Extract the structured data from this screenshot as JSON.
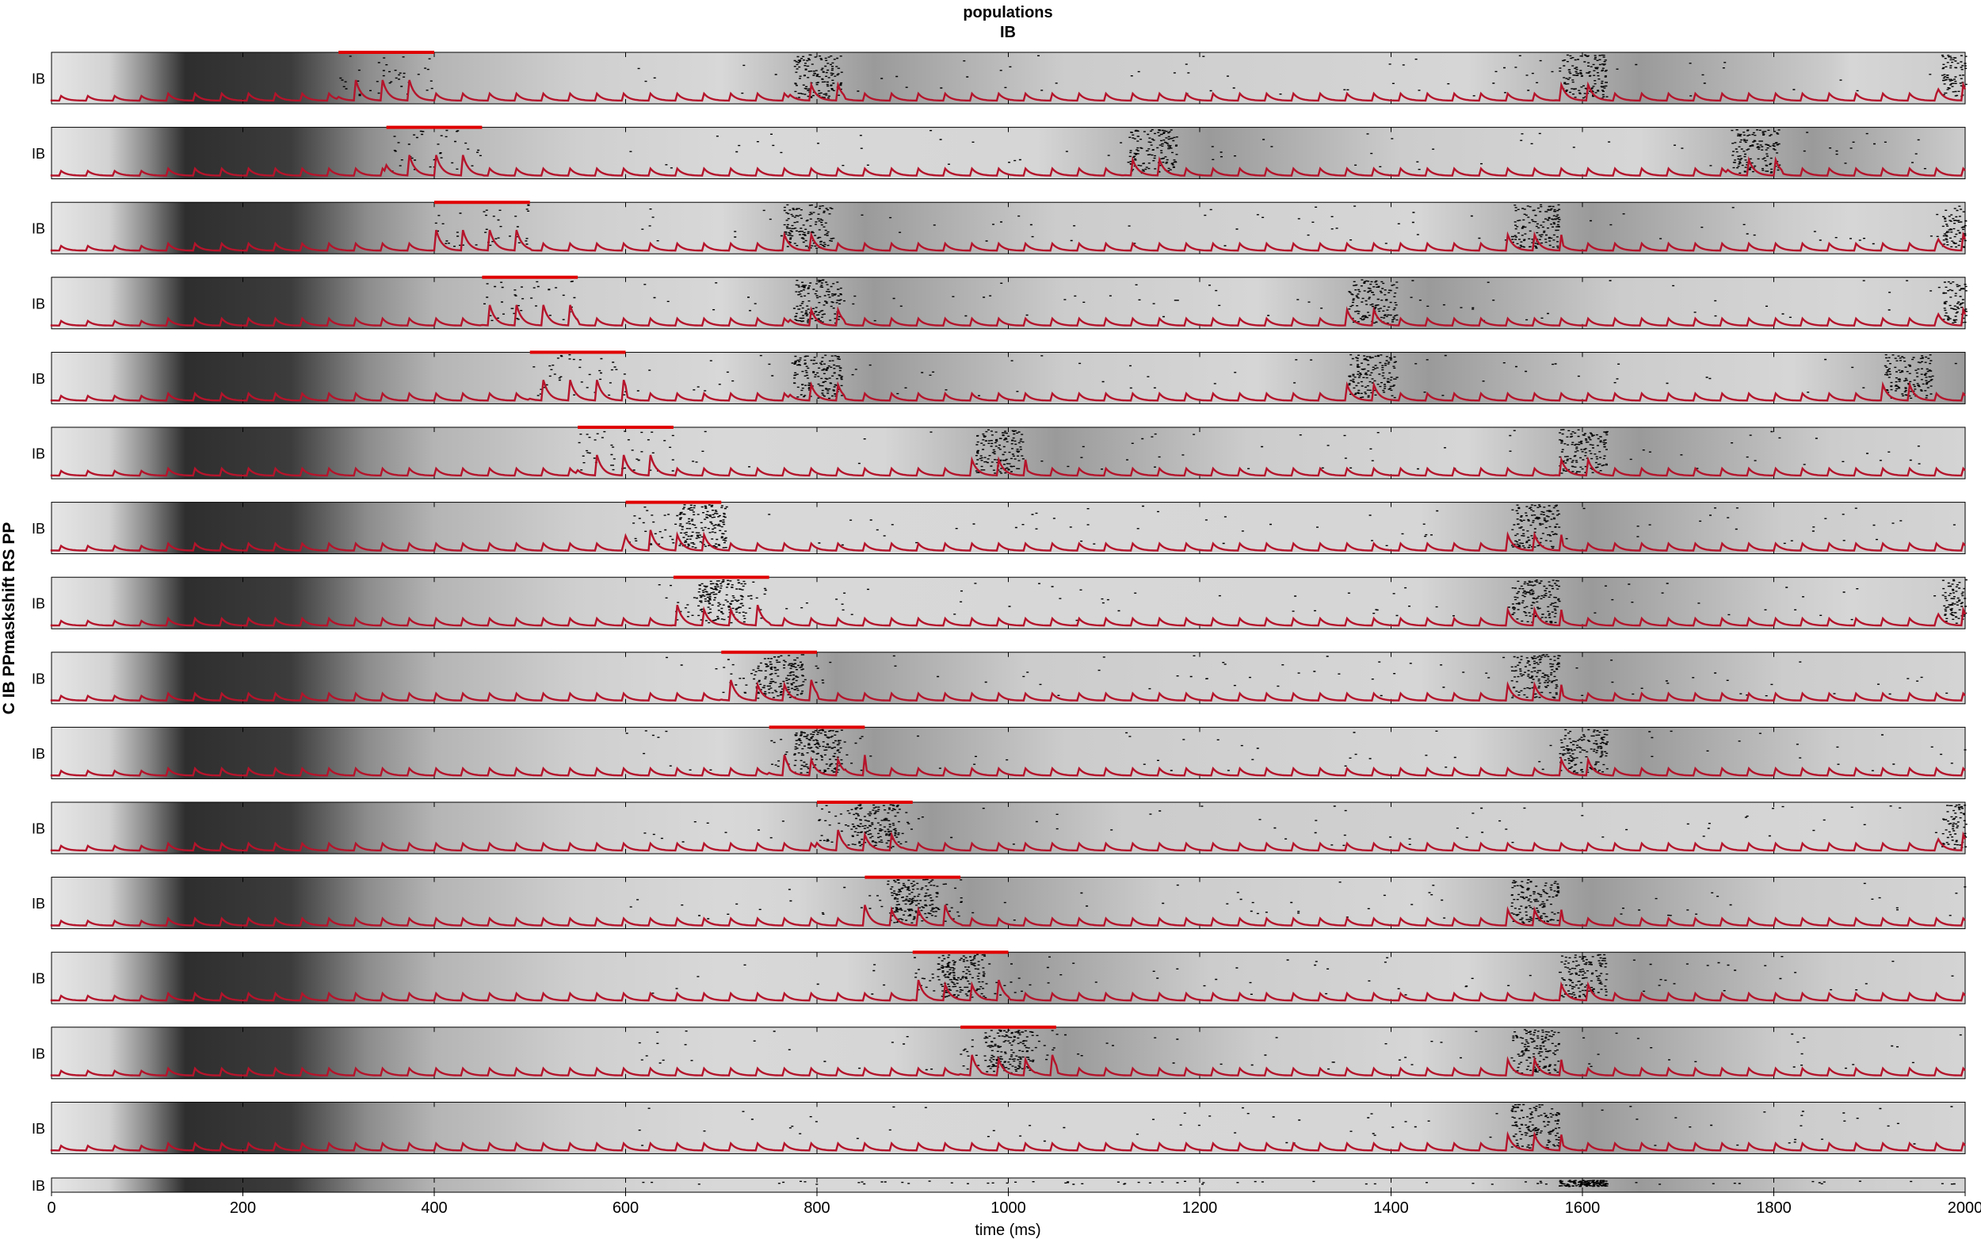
{
  "figure": {
    "title_line1": "populations",
    "title_line2": "IB",
    "side_label": "C IB PPmaskshift RS PP"
  },
  "chart_data": {
    "type": "raster",
    "title": "populations IB",
    "xlabel": "time (ms)",
    "ylabel": "",
    "xlim": [
      0,
      2000
    ],
    "xticks": [
      0,
      200,
      400,
      600,
      800,
      1000,
      1200,
      1400,
      1600,
      1800,
      2000
    ],
    "xtick_labels": [
      "0",
      "200",
      "400",
      "600",
      "800",
      "1000",
      "1200",
      "1400",
      "1600",
      "1800",
      "2000"
    ],
    "grid": false,
    "colors": {
      "trace": "#b5142b",
      "mask_bar": "#e00000",
      "spikes": "#000000",
      "background_light": "#dcdcdc",
      "background_dark": "#282828"
    },
    "rows": [
      {
        "axis_label": "IB",
        "mask_start": 300,
        "mask_end": 400,
        "bursts": [
          800,
          1600,
          2000
        ]
      },
      {
        "axis_label": "IB",
        "mask_start": 350,
        "mask_end": 450,
        "bursts": [
          1150,
          1780
        ]
      },
      {
        "axis_label": "IB",
        "mask_start": 400,
        "mask_end": 500,
        "bursts": [
          790,
          1550,
          2000
        ]
      },
      {
        "axis_label": "IB",
        "mask_start": 450,
        "mask_end": 550,
        "bursts": [
          800,
          1380,
          2000
        ]
      },
      {
        "axis_label": "IB",
        "mask_start": 500,
        "mask_end": 600,
        "bursts": [
          800,
          1380,
          1940
        ]
      },
      {
        "axis_label": "IB",
        "mask_start": 550,
        "mask_end": 650,
        "bursts": [
          990,
          1600
        ]
      },
      {
        "axis_label": "IB",
        "mask_start": 600,
        "mask_end": 700,
        "bursts": [
          680,
          1550
        ]
      },
      {
        "axis_label": "IB",
        "mask_start": 650,
        "mask_end": 750,
        "bursts": [
          700,
          1550,
          2000
        ]
      },
      {
        "axis_label": "IB",
        "mask_start": 700,
        "mask_end": 800,
        "bursts": [
          760,
          1550
        ]
      },
      {
        "axis_label": "IB",
        "mask_start": 750,
        "mask_end": 850,
        "bursts": [
          800,
          1600
        ]
      },
      {
        "axis_label": "IB",
        "mask_start": 800,
        "mask_end": 900,
        "bursts": [
          860,
          2000
        ]
      },
      {
        "axis_label": "IB",
        "mask_start": 850,
        "mask_end": 950,
        "bursts": [
          900,
          1550
        ]
      },
      {
        "axis_label": "IB",
        "mask_start": 900,
        "mask_end": 1000,
        "bursts": [
          950,
          1600
        ]
      },
      {
        "axis_label": "IB",
        "mask_start": 950,
        "mask_end": 1050,
        "bursts": [
          1000,
          1550
        ]
      },
      {
        "axis_label": "IB",
        "mask_start": null,
        "mask_end": null,
        "bursts": [
          1550
        ]
      },
      {
        "axis_label": "IB",
        "mask_start": null,
        "mask_end": null,
        "bursts": [
          1600
        ]
      }
    ],
    "trace_period_ms": 28
  }
}
